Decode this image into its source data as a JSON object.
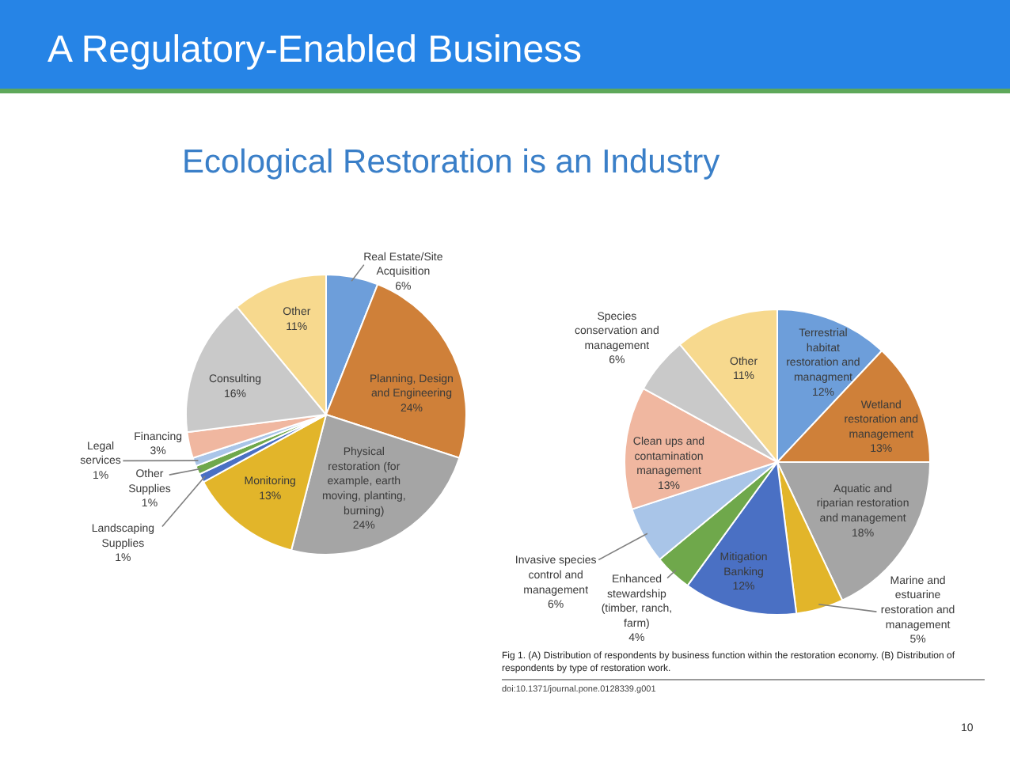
{
  "chart_data": [
    {
      "type": "pie",
      "title": "A Regulatory-Enabled Business",
      "subtitle": "Ecological Restoration is an Industry",
      "categories": [
        "Real Estate/Site Acquisition",
        "Planning, Design and Engineering",
        "Physical restoration (for example, earth moving, planting, burning)",
        "Monitoring",
        "Landscaping Supplies",
        "Other Supplies",
        "Legal services",
        "Financing",
        "Consulting",
        "Other"
      ],
      "values": [
        6,
        24,
        24,
        13,
        1,
        1,
        1,
        3,
        16,
        11
      ],
      "value_labels": [
        "6%",
        "24%",
        "24%",
        "13%",
        "1%",
        "1%",
        "1%",
        "3%",
        "16%",
        "11%"
      ],
      "colors": [
        "#6d9eda",
        "#cf8039",
        "#a5a5a5",
        "#e2b52a",
        "#4a70c4",
        "#6fa84b",
        "#a9c5e8",
        "#f0b7a0",
        "#c9c9c9",
        "#f7d98e"
      ]
    },
    {
      "type": "pie",
      "categories": [
        "Terrestrial habitat restoration and managment",
        "Wetland restoration and management",
        "Aquatic and riparian restoration and management",
        "Marine and estuarine restoration and management",
        "Mitigation Banking",
        "Enhanced stewardship (timber, ranch, farm)",
        "Invasive species control and management",
        "Clean ups and contamination management",
        "Species conservation and management",
        "Other"
      ],
      "values": [
        12,
        13,
        18,
        5,
        12,
        4,
        6,
        13,
        6,
        11
      ],
      "value_labels": [
        "12%",
        "13%",
        "18%",
        "5%",
        "12%",
        "4%",
        "6%",
        "13%",
        "6%",
        "11%"
      ],
      "colors": [
        "#6d9eda",
        "#cf8039",
        "#a5a5a5",
        "#e2b52a",
        "#4a70c4",
        "#6fa84b",
        "#a9c5e8",
        "#f0b7a0",
        "#c9c9c9",
        "#f7d98e"
      ],
      "annotations": [
        "Fig 1. (A) Distribution of respondents by business function within the restoration economy. (B) Distribution of respondents by type of restoration work.",
        "doi:10.1371/journal.pone.0128339.g001",
        "10"
      ]
    }
  ]
}
